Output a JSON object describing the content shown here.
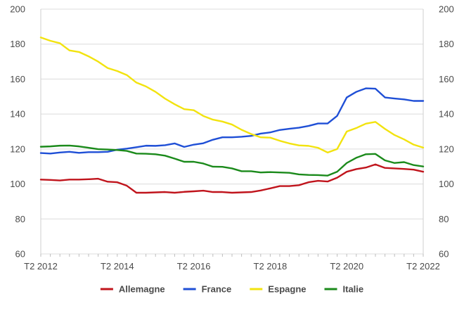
{
  "chart_data": {
    "type": "line",
    "title": "",
    "xlabel": "",
    "ylabel": "",
    "ylim": [
      60,
      200
    ],
    "yticks": [
      60,
      80,
      100,
      120,
      140,
      160,
      180,
      200
    ],
    "y_axis_sides": [
      "left",
      "right"
    ],
    "grid": "horizontal",
    "legend_position": "bottom",
    "x_tick_labels": [
      "T2 2012",
      "T2 2014",
      "T2 2016",
      "T2 2018",
      "T2 2020",
      "T2 2022"
    ],
    "x_tick_index": [
      0,
      8,
      16,
      24,
      32,
      40
    ],
    "series": [
      {
        "name": "Allemagne",
        "color": "#c0141c",
        "values": [
          102.5,
          102.3,
          102.0,
          102.5,
          102.5,
          102.7,
          103.0,
          101.3,
          101.0,
          99.0,
          95.0,
          95.0,
          95.2,
          95.4,
          95.0,
          95.5,
          95.8,
          96.2,
          95.4,
          95.4,
          95.0,
          95.2,
          95.4,
          96.3,
          97.5,
          98.8,
          98.8,
          99.3,
          101.0,
          101.8,
          101.4,
          103.6,
          107.0,
          108.5,
          109.4,
          111.2,
          109.2,
          108.9,
          108.6,
          108.2,
          107.0
        ]
      },
      {
        "name": "France",
        "color": "#1f4fd6",
        "values": [
          117.7,
          117.4,
          118.0,
          118.4,
          117.8,
          118.2,
          118.2,
          118.4,
          119.6,
          120.2,
          121.0,
          121.9,
          121.8,
          122.2,
          123.2,
          121.2,
          122.5,
          123.3,
          125.3,
          126.7,
          126.7,
          127.0,
          127.5,
          128.8,
          129.5,
          130.9,
          131.6,
          132.2,
          133.2,
          134.6,
          134.6,
          139.0,
          149.5,
          152.7,
          154.7,
          154.5,
          149.5,
          148.9,
          148.4,
          147.5,
          147.5
        ]
      },
      {
        "name": "Espagne",
        "color": "#f2e30f",
        "values": [
          183.8,
          181.9,
          180.5,
          176.4,
          175.5,
          173.0,
          170.0,
          166.3,
          164.6,
          162.3,
          158.0,
          155.8,
          152.7,
          148.8,
          145.6,
          142.8,
          142.2,
          138.9,
          136.8,
          135.7,
          134.0,
          131.0,
          128.6,
          126.7,
          126.5,
          124.7,
          123.2,
          122.1,
          121.8,
          120.7,
          118.0,
          120.0,
          130.0,
          132.0,
          134.5,
          135.5,
          131.5,
          128.0,
          125.5,
          122.5,
          120.8
        ]
      },
      {
        "name": "Italie",
        "color": "#1b8a1b",
        "values": [
          121.3,
          121.5,
          121.9,
          122.0,
          121.5,
          120.7,
          119.9,
          119.7,
          119.4,
          118.9,
          117.4,
          117.3,
          117.0,
          116.2,
          114.5,
          112.7,
          112.7,
          111.7,
          109.9,
          109.8,
          108.9,
          107.3,
          107.3,
          106.6,
          106.8,
          106.6,
          106.4,
          105.5,
          105.2,
          105.1,
          104.8,
          107.0,
          112.0,
          115.0,
          117.0,
          117.2,
          113.5,
          112.0,
          112.5,
          110.8,
          110.0
        ]
      }
    ]
  }
}
